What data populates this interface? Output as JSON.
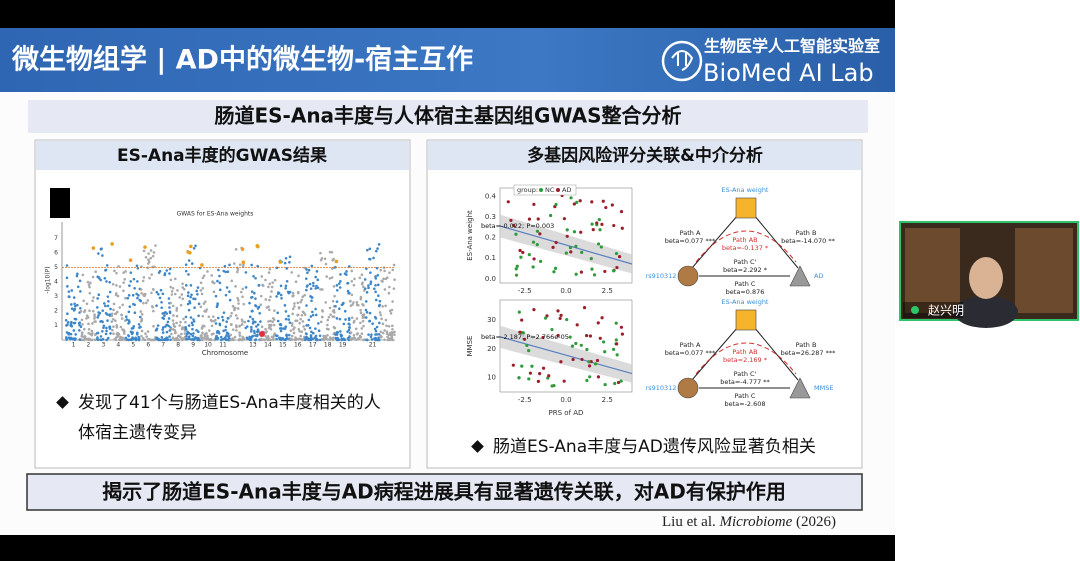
{
  "header": {
    "title": "微生物组学 | AD中的微生物-宿主互作",
    "logo_cn": "生物医学人工智能实验室",
    "logo_en": "BioMed AI Lab"
  },
  "section_title": "肠道ES-Ana丰度与人体宿主基因组GWAS整合分析",
  "left_panel": {
    "title": "ES-Ana丰度的GWAS结果",
    "bullet": "发现了41个与肠道ES-Ana丰度相关的人体宿主遗传变异",
    "figure": {
      "title": "GWAS for ES-Ana weights",
      "x_label": "Chromosome",
      "y_label": "-log10(P)",
      "yticks": [
        "1",
        "2",
        "3",
        "4",
        "5",
        "6",
        "7"
      ],
      "chromosomes": [
        "1",
        "2",
        "3",
        "4",
        "5",
        "6",
        "7",
        "8",
        "9",
        "10",
        "11",
        "13",
        "14",
        "15",
        "16",
        "17",
        "18",
        "19",
        "21"
      ]
    }
  },
  "right_panel": {
    "title": "多基因风险评分关联&中介分析",
    "bullet": "肠道ES-Ana丰度与AD遗传风险显著负相关",
    "scatter_top": {
      "y_label": "ES-Ana weight",
      "yticks": [
        "0.0",
        "0.1",
        "0.2",
        "0.3",
        "0.4"
      ],
      "xticks": [
        "-2.5",
        "0.0",
        "2.5"
      ],
      "legend_title": "group:",
      "legend": [
        "NC",
        "AD"
      ],
      "annotation": "beta=-0.022; P=0.003"
    },
    "scatter_bottom": {
      "y_label": "MMSE",
      "yticks": [
        "10",
        "20",
        "30"
      ],
      "xticks": [
        "-2.5",
        "0.0",
        "2.5"
      ],
      "annotation": "beta=-2.187; P=2.766e-05",
      "x_label": "PRS of AD"
    },
    "mediation_top": {
      "mediator": "ES-Ana weight",
      "path_a": "Path A",
      "beta_a": "beta=0.077 ***",
      "path_ab": "Path AB",
      "beta_ab": "beta=-0.137 *",
      "path_b": "Path B",
      "beta_b": "beta=-14.070 **",
      "exposure": "rs910312",
      "path_c_prime": "Path C'",
      "beta_c_prime": "beta=2.292 *",
      "outcome": "AD",
      "path_c": "Path C",
      "beta_c": "beta=0.876"
    },
    "mediation_bottom": {
      "mediator": "ES-Ana weight",
      "path_a": "Path A",
      "beta_a": "beta=0.077 ***",
      "path_ab": "Path AB",
      "beta_ab": "beta=2.169 *",
      "path_b": "Path B",
      "beta_b": "beta=26.287 ***",
      "exposure": "rs910312",
      "path_c_prime": "Path C'",
      "beta_c_prime": "beta=-4.777 **",
      "outcome": "MMSE",
      "path_c": "Path C",
      "beta_c": "beta=-2.608"
    }
  },
  "conclusion": "揭示了肠道ES-Ana丰度与AD病程进展具有显著遗传关联，对AD有保护作用",
  "citation": {
    "authors": "Liu et al.",
    "journal": "Microbiome",
    "year": "(2026)"
  },
  "participant": {
    "name": "赵兴明"
  }
}
